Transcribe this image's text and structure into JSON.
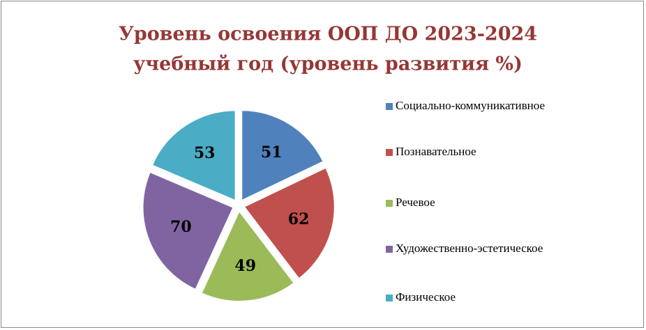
{
  "chart_data": {
    "type": "pie",
    "title": [
      "Уровень освоения ООП ДО 2023-2024",
      "учебный год (уровень развития %)"
    ],
    "categories": [
      "Социально-коммуникативное",
      "Познавательное",
      "Речевое",
      "Художественно-эстетическое",
      "Физическое"
    ],
    "values": [
      51,
      62,
      49,
      70,
      53
    ],
    "colors": [
      "#4f81bd",
      "#c0504d",
      "#9bbb59",
      "#8064a2",
      "#4bacc6"
    ],
    "legend": "right"
  }
}
